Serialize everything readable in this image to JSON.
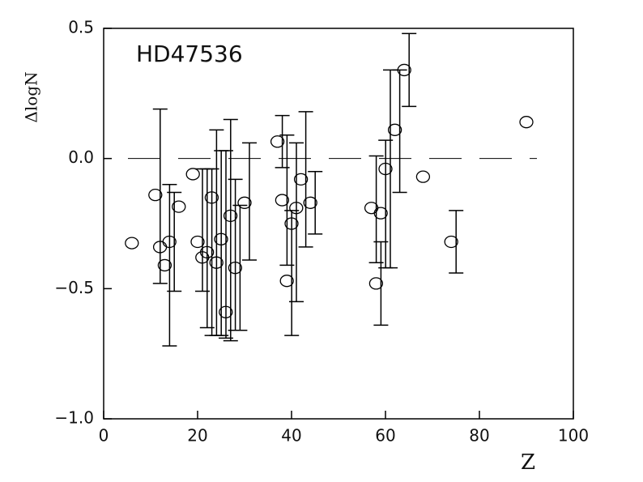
{
  "chart_data": {
    "type": "errorbar",
    "annotation": "HD47536",
    "x_label": "Z",
    "y_label": "ΔlogN",
    "x": [
      6,
      11,
      12,
      13,
      14,
      16,
      19,
      20,
      21,
      22,
      23,
      24,
      25,
      26,
      27,
      28,
      30,
      37,
      38,
      39,
      40,
      41,
      42,
      44,
      57,
      58,
      59,
      60,
      62,
      64,
      68,
      74,
      90
    ],
    "y": [
      -0.325,
      -0.14,
      -0.34,
      -0.41,
      -0.32,
      -0.185,
      -0.06,
      -0.32,
      -0.38,
      -0.36,
      -0.15,
      -0.4,
      -0.31,
      -0.59,
      -0.22,
      -0.42,
      -0.17,
      0.065,
      -0.16,
      -0.47,
      -0.25,
      -0.19,
      -0.08,
      -0.17,
      -0.19,
      -0.48,
      -0.21,
      -0.04,
      0.11,
      0.34,
      -0.07,
      -0.32,
      0.14
    ],
    "err_plus": [
      null,
      0.33,
      null,
      0.31,
      0.19,
      null,
      null,
      0.28,
      0.34,
      0.32,
      0.26,
      0.43,
      0.34,
      0.74,
      0.14,
      0.24,
      0.23,
      0.1,
      0.25,
      0.27,
      0.31,
      null,
      0.26,
      0.12,
      0.2,
      0.16,
      0.28,
      0.38,
      0.23,
      0.14,
      null,
      0.12,
      null
    ],
    "err_minus": [
      null,
      0.34,
      null,
      0.31,
      0.19,
      null,
      null,
      0.19,
      0.27,
      0.32,
      0.53,
      0.28,
      0.38,
      0.11,
      0.44,
      0.24,
      0.22,
      0.1,
      0.25,
      0.21,
      0.3,
      null,
      0.26,
      0.12,
      0.21,
      0.16,
      0.21,
      0.38,
      0.24,
      0.14,
      null,
      0.12,
      null
    ],
    "reference_line": 0,
    "color": "#000000",
    "xlim": [
      0,
      100
    ],
    "xticks": [
      0,
      20,
      40,
      60,
      80,
      100
    ],
    "ylim": [
      -1,
      0.5
    ],
    "yticks": [
      {
        "value": -1,
        "label": "−1.0"
      },
      {
        "value": -0.5,
        "label": "−0.5"
      },
      {
        "value": 0,
        "label": "0.0"
      },
      0.5
    ]
  }
}
